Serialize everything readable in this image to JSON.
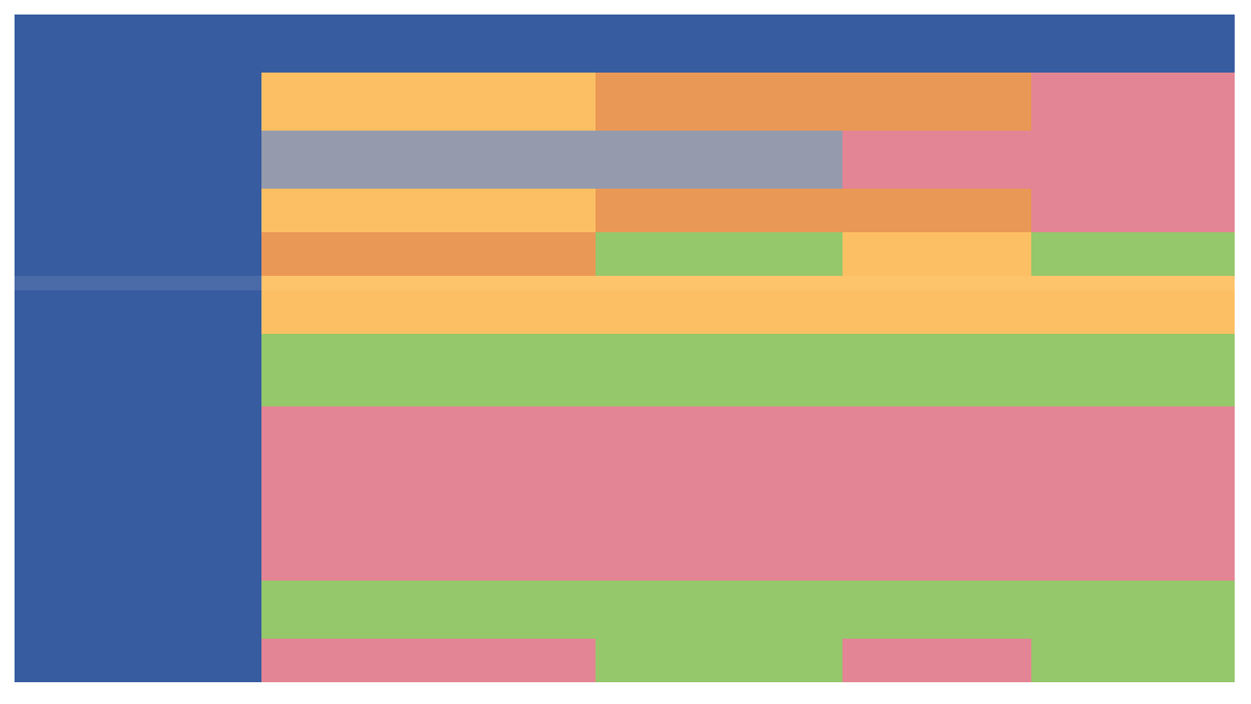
{
  "colors": {
    "header": "#375ca0",
    "yellow": "#fdbf63",
    "orange": "#ea9855",
    "pink": "#e38594",
    "gray": "#959bad",
    "green": "#95c76b"
  },
  "table": {
    "header": {
      "corner": "",
      "sub": "",
      "c2a": "",
      "c2b": "",
      "c3a": "",
      "c3b": "",
      "c4a": "",
      "c4b": ""
    },
    "rows": {
      "r1": {
        "label": "",
        "c1": "",
        "c2": "",
        "c3": ""
      },
      "r2": {
        "label": "",
        "c1": "",
        "c2": ""
      },
      "r3": {
        "label": "",
        "c1": "",
        "c2": "",
        "c3": ""
      },
      "r4": {
        "label": "",
        "c1": "",
        "c2": "",
        "c3": "",
        "c4": ""
      },
      "r5": {
        "label": "",
        "c1": ""
      },
      "r6": {
        "label": "",
        "c1": "",
        "c2a": "",
        "c2b": ""
      },
      "r7": {
        "label": "",
        "l1": "",
        "l2": "",
        "l3": "",
        "l4": "",
        "l5": "",
        "c2a": "",
        "c2b": "",
        "c2c": "",
        "c3": ""
      },
      "r8": {
        "label": "",
        "c1": ""
      },
      "r9": {
        "label": "",
        "c1": "",
        "c2": "",
        "c3": "",
        "c4": ""
      }
    }
  }
}
